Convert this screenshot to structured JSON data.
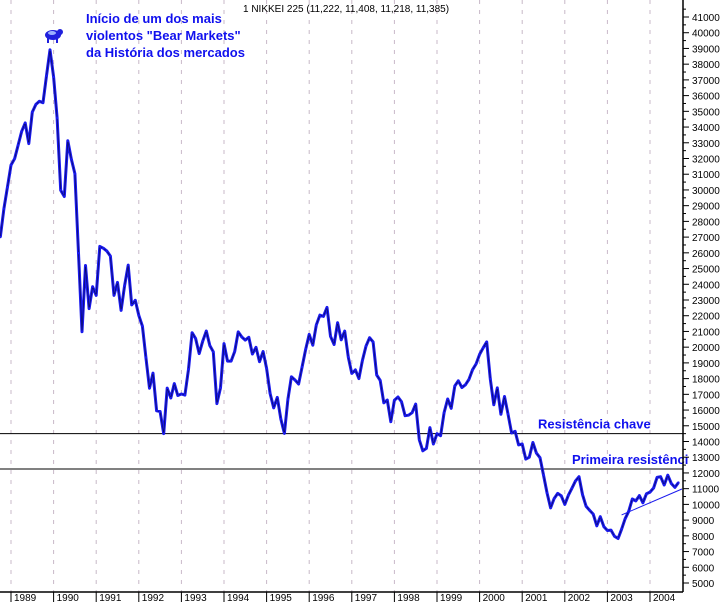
{
  "chart_data": {
    "type": "line",
    "title": "1 NIKKEI 225 (11,222, 11,408, 11,218, 11,385)",
    "xlabel": "",
    "ylabel": "",
    "ylim": [
      5000,
      41000
    ],
    "xlim": [
      "1988-10",
      "2004-10"
    ],
    "y_ticks": [
      41000,
      40000,
      39000,
      38000,
      37000,
      36000,
      35000,
      34000,
      33000,
      32000,
      31000,
      30000,
      29000,
      28000,
      27000,
      26000,
      25000,
      24000,
      23000,
      22000,
      21000,
      20000,
      19000,
      18000,
      17000,
      16000,
      15000,
      14000,
      13000,
      12000,
      11000,
      10000,
      9000,
      8000,
      7000,
      6000,
      5000
    ],
    "x_ticks": [
      "1989",
      "1990",
      "1991",
      "1992",
      "1993",
      "1994",
      "1995",
      "1996",
      "1997",
      "1998",
      "1999",
      "2000",
      "2001",
      "2002",
      "2003",
      "2004"
    ],
    "y_axis_side": "right",
    "grid": "vertical dashed at each year",
    "colors": {
      "series": "#1a1aee",
      "lines": "#000000",
      "annotation": "#1010ee",
      "grid": "#c8b8c8"
    },
    "series": [
      {
        "points": [
          [
            "1988-10",
            27000
          ],
          [
            "1988-11",
            28800
          ],
          [
            "1988-12",
            30159
          ],
          [
            "1989-01",
            31581
          ],
          [
            "1989-02",
            31985
          ],
          [
            "1989-03",
            32838
          ],
          [
            "1989-04",
            33713
          ],
          [
            "1989-05",
            34266
          ],
          [
            "1989-06",
            32948
          ],
          [
            "1989-07",
            34953
          ],
          [
            "1989-08",
            35441
          ],
          [
            "1989-09",
            35636
          ],
          [
            "1989-10",
            35549
          ],
          [
            "1989-11",
            37268
          ],
          [
            "1989-12",
            38916
          ],
          [
            "1990-01",
            37189
          ],
          [
            "1990-02",
            34591
          ],
          [
            "1990-03",
            29980
          ],
          [
            "1990-04",
            29584
          ],
          [
            "1990-05",
            33131
          ],
          [
            "1990-06",
            31940
          ],
          [
            "1990-07",
            31036
          ],
          [
            "1990-08",
            25978
          ],
          [
            "1990-09",
            20984
          ],
          [
            "1990-10",
            25194
          ],
          [
            "1990-11",
            22454
          ],
          [
            "1990-12",
            23849
          ],
          [
            "1991-01",
            23293
          ],
          [
            "1991-02",
            26409
          ],
          [
            "1991-03",
            26292
          ],
          [
            "1991-04",
            26111
          ],
          [
            "1991-05",
            25790
          ],
          [
            "1991-06",
            23291
          ],
          [
            "1991-07",
            24121
          ],
          [
            "1991-08",
            22336
          ],
          [
            "1991-09",
            23916
          ],
          [
            "1991-10",
            25222
          ],
          [
            "1991-11",
            22687
          ],
          [
            "1991-12",
            22984
          ],
          [
            "1992-01",
            22023
          ],
          [
            "1992-02",
            21339
          ],
          [
            "1992-03",
            19346
          ],
          [
            "1992-04",
            17391
          ],
          [
            "1992-05",
            18348
          ],
          [
            "1992-06",
            15952
          ],
          [
            "1992-07",
            15910
          ],
          [
            "1992-08",
            14500
          ],
          [
            "1992-09",
            17399
          ],
          [
            "1992-10",
            16767
          ],
          [
            "1992-11",
            17684
          ],
          [
            "1992-12",
            16925
          ],
          [
            "1993-01",
            17024
          ],
          [
            "1993-02",
            16953
          ],
          [
            "1993-03",
            18591
          ],
          [
            "1993-04",
            20919
          ],
          [
            "1993-05",
            20552
          ],
          [
            "1993-06",
            19590
          ],
          [
            "1993-07",
            20380
          ],
          [
            "1993-08",
            21027
          ],
          [
            "1993-09",
            20106
          ],
          [
            "1993-10",
            19703
          ],
          [
            "1993-11",
            16408
          ],
          [
            "1993-12",
            17417
          ],
          [
            "1994-01",
            20229
          ],
          [
            "1994-02",
            19112
          ],
          [
            "1994-03",
            19112
          ],
          [
            "1994-04",
            19725
          ],
          [
            "1994-05",
            20974
          ],
          [
            "1994-06",
            20644
          ],
          [
            "1994-07",
            20449
          ],
          [
            "1994-08",
            20629
          ],
          [
            "1994-09",
            19564
          ],
          [
            "1994-10",
            19990
          ],
          [
            "1994-11",
            19076
          ],
          [
            "1994-12",
            19723
          ],
          [
            "1995-01",
            18650
          ],
          [
            "1995-02",
            17053
          ],
          [
            "1995-03",
            16140
          ],
          [
            "1995-04",
            16807
          ],
          [
            "1995-05",
            15437
          ],
          [
            "1995-06",
            14517
          ],
          [
            "1995-07",
            16678
          ],
          [
            "1995-08",
            18117
          ],
          [
            "1995-09",
            17913
          ],
          [
            "1995-10",
            17655
          ],
          [
            "1995-11",
            18744
          ],
          [
            "1995-12",
            19868
          ],
          [
            "1996-01",
            20813
          ],
          [
            "1996-02",
            20125
          ],
          [
            "1996-03",
            21407
          ],
          [
            "1996-04",
            22041
          ],
          [
            "1996-05",
            21956
          ],
          [
            "1996-06",
            22531
          ],
          [
            "1996-07",
            20693
          ],
          [
            "1996-08",
            20167
          ],
          [
            "1996-09",
            21556
          ],
          [
            "1996-10",
            20467
          ],
          [
            "1996-11",
            21020
          ],
          [
            "1996-12",
            19361
          ],
          [
            "1997-01",
            18330
          ],
          [
            "1997-02",
            18557
          ],
          [
            "1997-03",
            18003
          ],
          [
            "1997-04",
            19151
          ],
          [
            "1997-05",
            20068
          ],
          [
            "1997-06",
            20605
          ],
          [
            "1997-07",
            20331
          ],
          [
            "1997-08",
            18229
          ],
          [
            "1997-09",
            17888
          ],
          [
            "1997-10",
            16459
          ],
          [
            "1997-11",
            16636
          ],
          [
            "1997-12",
            15259
          ],
          [
            "1998-01",
            16628
          ],
          [
            "1998-02",
            16831
          ],
          [
            "1998-03",
            16527
          ],
          [
            "1998-04",
            15641
          ],
          [
            "1998-05",
            15671
          ],
          [
            "1998-06",
            15830
          ],
          [
            "1998-07",
            16379
          ],
          [
            "1998-08",
            14108
          ],
          [
            "1998-09",
            13406
          ],
          [
            "1998-10",
            13564
          ],
          [
            "1998-11",
            14883
          ],
          [
            "1998-12",
            13842
          ],
          [
            "1999-01",
            14499
          ],
          [
            "1999-02",
            14368
          ],
          [
            "1999-03",
            15837
          ],
          [
            "1999-04",
            16701
          ],
          [
            "1999-05",
            16112
          ],
          [
            "1999-06",
            17530
          ],
          [
            "1999-07",
            17862
          ],
          [
            "1999-08",
            17437
          ],
          [
            "1999-09",
            17605
          ],
          [
            "1999-10",
            17942
          ],
          [
            "1999-11",
            18558
          ],
          [
            "1999-12",
            18934
          ],
          [
            "2000-01",
            19540
          ],
          [
            "2000-02",
            19960
          ],
          [
            "2000-03",
            20337
          ],
          [
            "2000-04",
            17974
          ],
          [
            "2000-05",
            16332
          ],
          [
            "2000-06",
            17411
          ],
          [
            "2000-07",
            15727
          ],
          [
            "2000-08",
            16861
          ],
          [
            "2000-09",
            15747
          ],
          [
            "2000-10",
            14539
          ],
          [
            "2000-11",
            14649
          ],
          [
            "2000-12",
            13785
          ],
          [
            "2001-01",
            13843
          ],
          [
            "2001-02",
            12883
          ],
          [
            "2001-03",
            12999
          ],
          [
            "2001-04",
            13934
          ],
          [
            "2001-05",
            13262
          ],
          [
            "2001-06",
            12969
          ],
          [
            "2001-07",
            11860
          ],
          [
            "2001-08",
            10713
          ],
          [
            "2001-09",
            9774
          ],
          [
            "2001-10",
            10366
          ],
          [
            "2001-11",
            10697
          ],
          [
            "2001-12",
            10543
          ],
          [
            "2002-01",
            9997
          ],
          [
            "2002-02",
            10587
          ],
          [
            "2002-03",
            11025
          ],
          [
            "2002-04",
            11492
          ],
          [
            "2002-05",
            11764
          ],
          [
            "2002-06",
            10621
          ],
          [
            "2002-07",
            9877
          ],
          [
            "2002-08",
            9619
          ],
          [
            "2002-09",
            9383
          ],
          [
            "2002-10",
            8640
          ],
          [
            "2002-11",
            9215
          ],
          [
            "2002-12",
            8579
          ],
          [
            "2003-01",
            8340
          ],
          [
            "2003-02",
            8363
          ],
          [
            "2003-03",
            7973
          ],
          [
            "2003-04",
            7831
          ],
          [
            "2003-05",
            8425
          ],
          [
            "2003-06",
            9083
          ],
          [
            "2003-07",
            9563
          ],
          [
            "2003-08",
            10344
          ],
          [
            "2003-09",
            10219
          ],
          [
            "2003-10",
            10560
          ],
          [
            "2003-11",
            10101
          ],
          [
            "2003-12",
            10677
          ],
          [
            "2004-01",
            10783
          ],
          [
            "2004-02",
            11042
          ],
          [
            "2004-03",
            11715
          ],
          [
            "2004-04",
            11762
          ],
          [
            "2004-05",
            11236
          ],
          [
            "2004-06",
            11858
          ],
          [
            "2004-07",
            11326
          ],
          [
            "2004-08",
            11082
          ],
          [
            "2004-09",
            11385
          ]
        ]
      }
    ],
    "horizontal_lines": [
      {
        "label": "Resistência chave",
        "value": 14500
      },
      {
        "label": "Primeira resistênci",
        "value": 12250
      }
    ],
    "trendline": {
      "from": [
        "2003-05",
        9330
      ],
      "to": [
        "2004-10",
        10980
      ]
    },
    "annotations": [
      {
        "lines": [
          "Início de um dos mais",
          "violentos \"Bear Markets\"",
          "da História dos mercados"
        ],
        "at": [
          "1989-12",
          38916
        ],
        "icon": "bear-icon"
      }
    ]
  }
}
